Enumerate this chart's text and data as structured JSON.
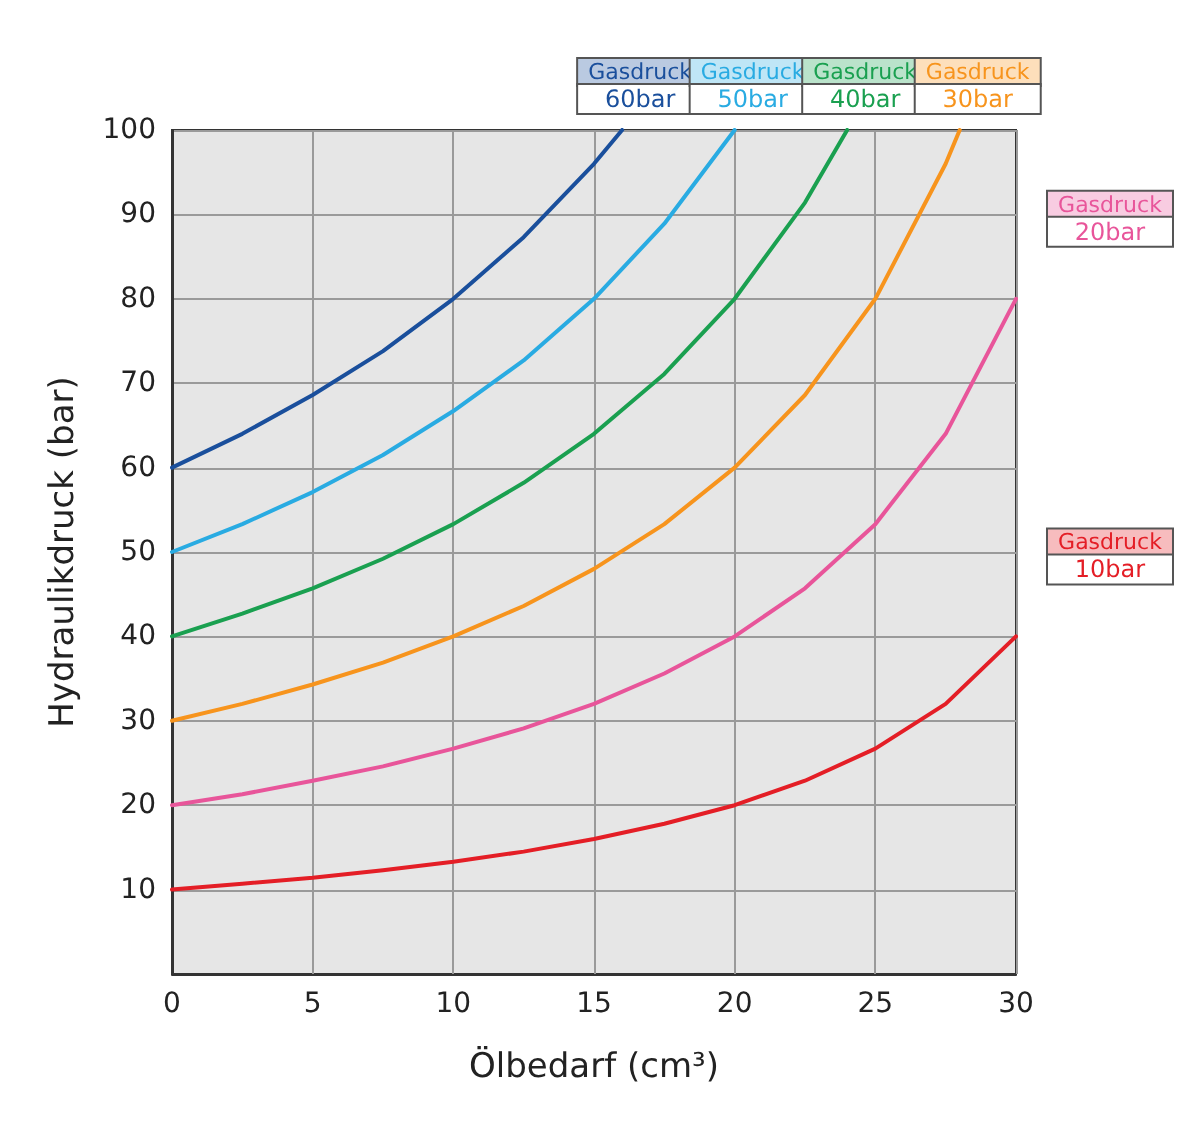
{
  "chart_data": {
    "type": "line",
    "xlabel": "Ölbedarf (cm³)",
    "ylabel": "Hydraulikdruck (bar)",
    "xlim": [
      0,
      30
    ],
    "xticks": [
      0,
      5,
      10,
      15,
      20,
      25,
      30
    ],
    "ylim": [
      0,
      100
    ],
    "yticks": [
      10,
      20,
      30,
      40,
      50,
      60,
      70,
      80,
      90,
      100
    ],
    "grid": true,
    "marker": "none",
    "line_style": "solid",
    "series": [
      {
        "name": "Gasdruck 60bar",
        "color": "#1a4f9c",
        "x": [
          0,
          2.5,
          5,
          7.5,
          10,
          12.5,
          15,
          16
        ],
        "values": [
          60,
          64,
          68.6,
          73.8,
          80,
          87.3,
          96,
          100
        ]
      },
      {
        "name": "Gasdruck 50bar",
        "color": "#29abe2",
        "x": [
          0,
          2.5,
          5,
          7.5,
          10,
          12.5,
          15,
          17.5,
          20
        ],
        "values": [
          50,
          53.3,
          57.1,
          61.5,
          66.7,
          72.7,
          80,
          88.9,
          100
        ]
      },
      {
        "name": "Gasdruck 40bar",
        "color": "#1aa050",
        "x": [
          0,
          2.5,
          5,
          7.5,
          10,
          12.5,
          15,
          17.5,
          20,
          22.5,
          24
        ],
        "values": [
          40,
          42.7,
          45.7,
          49.2,
          53.3,
          58.2,
          64,
          71.1,
          80,
          91.4,
          100
        ]
      },
      {
        "name": "Gasdruck 30bar",
        "color": "#f7941d",
        "x": [
          0,
          2.5,
          5,
          7.5,
          10,
          12.5,
          15,
          17.5,
          20,
          22.5,
          25,
          27.5,
          28
        ],
        "values": [
          30,
          32,
          34.3,
          36.9,
          40,
          43.6,
          48,
          53.3,
          60,
          68.6,
          80,
          96,
          100
        ]
      },
      {
        "name": "Gasdruck 20bar",
        "color": "#e8559a",
        "x": [
          0,
          2.5,
          5,
          7.5,
          10,
          12.5,
          15,
          17.5,
          20,
          22.5,
          25,
          27.5,
          30
        ],
        "values": [
          20,
          21.3,
          22.9,
          24.6,
          26.7,
          29.1,
          32,
          35.6,
          40,
          45.7,
          53.3,
          64,
          80
        ]
      },
      {
        "name": "Gasdruck 10bar",
        "color": "#e41e26",
        "x": [
          0,
          2.5,
          5,
          7.5,
          10,
          12.5,
          15,
          17.5,
          20,
          22.5,
          25,
          27.5,
          30
        ],
        "values": [
          10,
          10.7,
          11.4,
          12.3,
          13.3,
          14.5,
          16,
          17.8,
          20,
          22.9,
          26.7,
          32,
          40
        ]
      }
    ]
  }
}
